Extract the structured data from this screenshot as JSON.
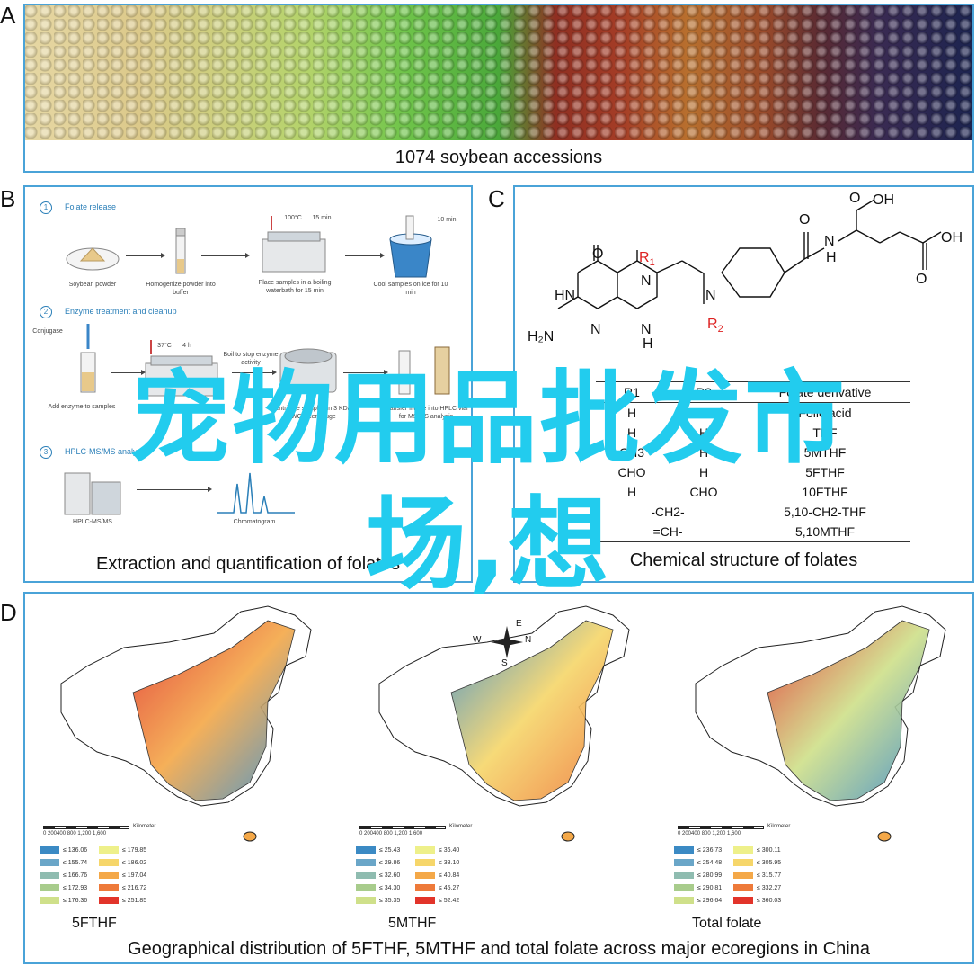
{
  "panels": {
    "a": {
      "letter": "A",
      "caption": "1074 soybean accessions"
    },
    "b": {
      "letter": "B",
      "caption": "Extraction and quantification of folates",
      "steps": [
        {
          "num": "1",
          "title": "Folate release"
        },
        {
          "num": "2",
          "title": "Enzyme treatment and cleanup"
        },
        {
          "num": "3",
          "title": "HPLC-MS/MS analysis"
        }
      ],
      "labels": {
        "soybean_powder": "Soybean powder",
        "homogenize": "Homogenize powder into buffer",
        "boiling": "Place samples in a boiling waterbath for 15 min",
        "cool": "Cool samples on ice for 10 min",
        "conjugase": "Conjugase",
        "boil_stop": "Boil to stop enzyme activity",
        "add_enzyme": "Add enzyme to samples",
        "digest": "Digest samples for 4 h",
        "centrifuge": "Centrifuge samples in 3 KDa MWCO centrifuge",
        "transfer": "Transfer filtrate into HPLC vial for MS/MS analysis",
        "hplc": "HPLC-MS/MS",
        "chromatogram": "Chromatogram",
        "temp1": "100°C",
        "time1": "15 min",
        "time2": "10 min",
        "temp2": "37°C",
        "time3": "4 h"
      }
    },
    "c": {
      "letter": "C",
      "caption": "Chemical structure of folates",
      "structure": {
        "o_top": "O",
        "oh1": "OH",
        "oh2": "OH",
        "o_right": "O",
        "o_left": "O",
        "hn": "HN",
        "n1": "N",
        "nh": "N",
        "h": "H",
        "n2": "N",
        "n3": "N",
        "h_n3": "H",
        "h2n": "H₂N",
        "r1": "R",
        "r1_sub": "1",
        "r2": "R",
        "r2_sub": "2"
      },
      "table": {
        "headers": [
          "R1",
          "R2",
          "Folate derivative"
        ],
        "rows": [
          [
            "H",
            "H",
            "Folic acid"
          ],
          [
            "H",
            "H",
            "THF"
          ],
          [
            "CH3",
            "H",
            "5MTHF"
          ],
          [
            "CHO",
            "H",
            "5FTHF"
          ],
          [
            "H",
            "CHO",
            "10FTHF"
          ],
          [
            "-CH2-",
            "",
            "5,10-CH2-THF"
          ],
          [
            "=CH-",
            "",
            "5,10MTHF"
          ]
        ]
      }
    },
    "d": {
      "letter": "D",
      "caption": "Geographical distribution of 5FTHF, 5MTHF and total folate across major ecoregions in China",
      "compass": {
        "n": "N",
        "s": "S",
        "e": "E",
        "w": "W"
      },
      "scale": {
        "ticks": "0 200400  800  1,200  1,600",
        "unit": "Kilometer"
      },
      "maps": [
        {
          "title": "5FTHF",
          "legend": [
            "≤ 136.06",
            "≤ 155.74",
            "≤ 166.76",
            "≤ 172.93",
            "≤ 176.36",
            "≤ 179.85",
            "≤ 186.02",
            "≤ 197.04",
            "≤ 216.72",
            "≤ 251.85"
          ]
        },
        {
          "title": "5MTHF",
          "legend": [
            "≤ 25.43",
            "≤ 29.86",
            "≤ 32.60",
            "≤ 34.30",
            "≤ 35.35",
            "≤ 36.40",
            "≤ 38.10",
            "≤ 40.84",
            "≤ 45.27",
            "≤ 52.42"
          ]
        },
        {
          "title": "Total folate",
          "legend": [
            "≤ 236.73",
            "≤ 254.48",
            "≤ 280.99",
            "≤ 290.81",
            "≤ 296.64",
            "≤ 300.11",
            "≤ 305.95",
            "≤ 315.77",
            "≤ 332.27",
            "≤ 360.03"
          ]
        }
      ],
      "legend_colors": [
        "#3b8ac4",
        "#6aa6c8",
        "#8fbcb0",
        "#a8cc8c",
        "#cfe08a",
        "#eef08a",
        "#f6d66a",
        "#f4a848",
        "#ee7a3a",
        "#e2342a"
      ]
    }
  },
  "overlay": {
    "line1": "宠物用品批发市",
    "line2": "场,想"
  }
}
